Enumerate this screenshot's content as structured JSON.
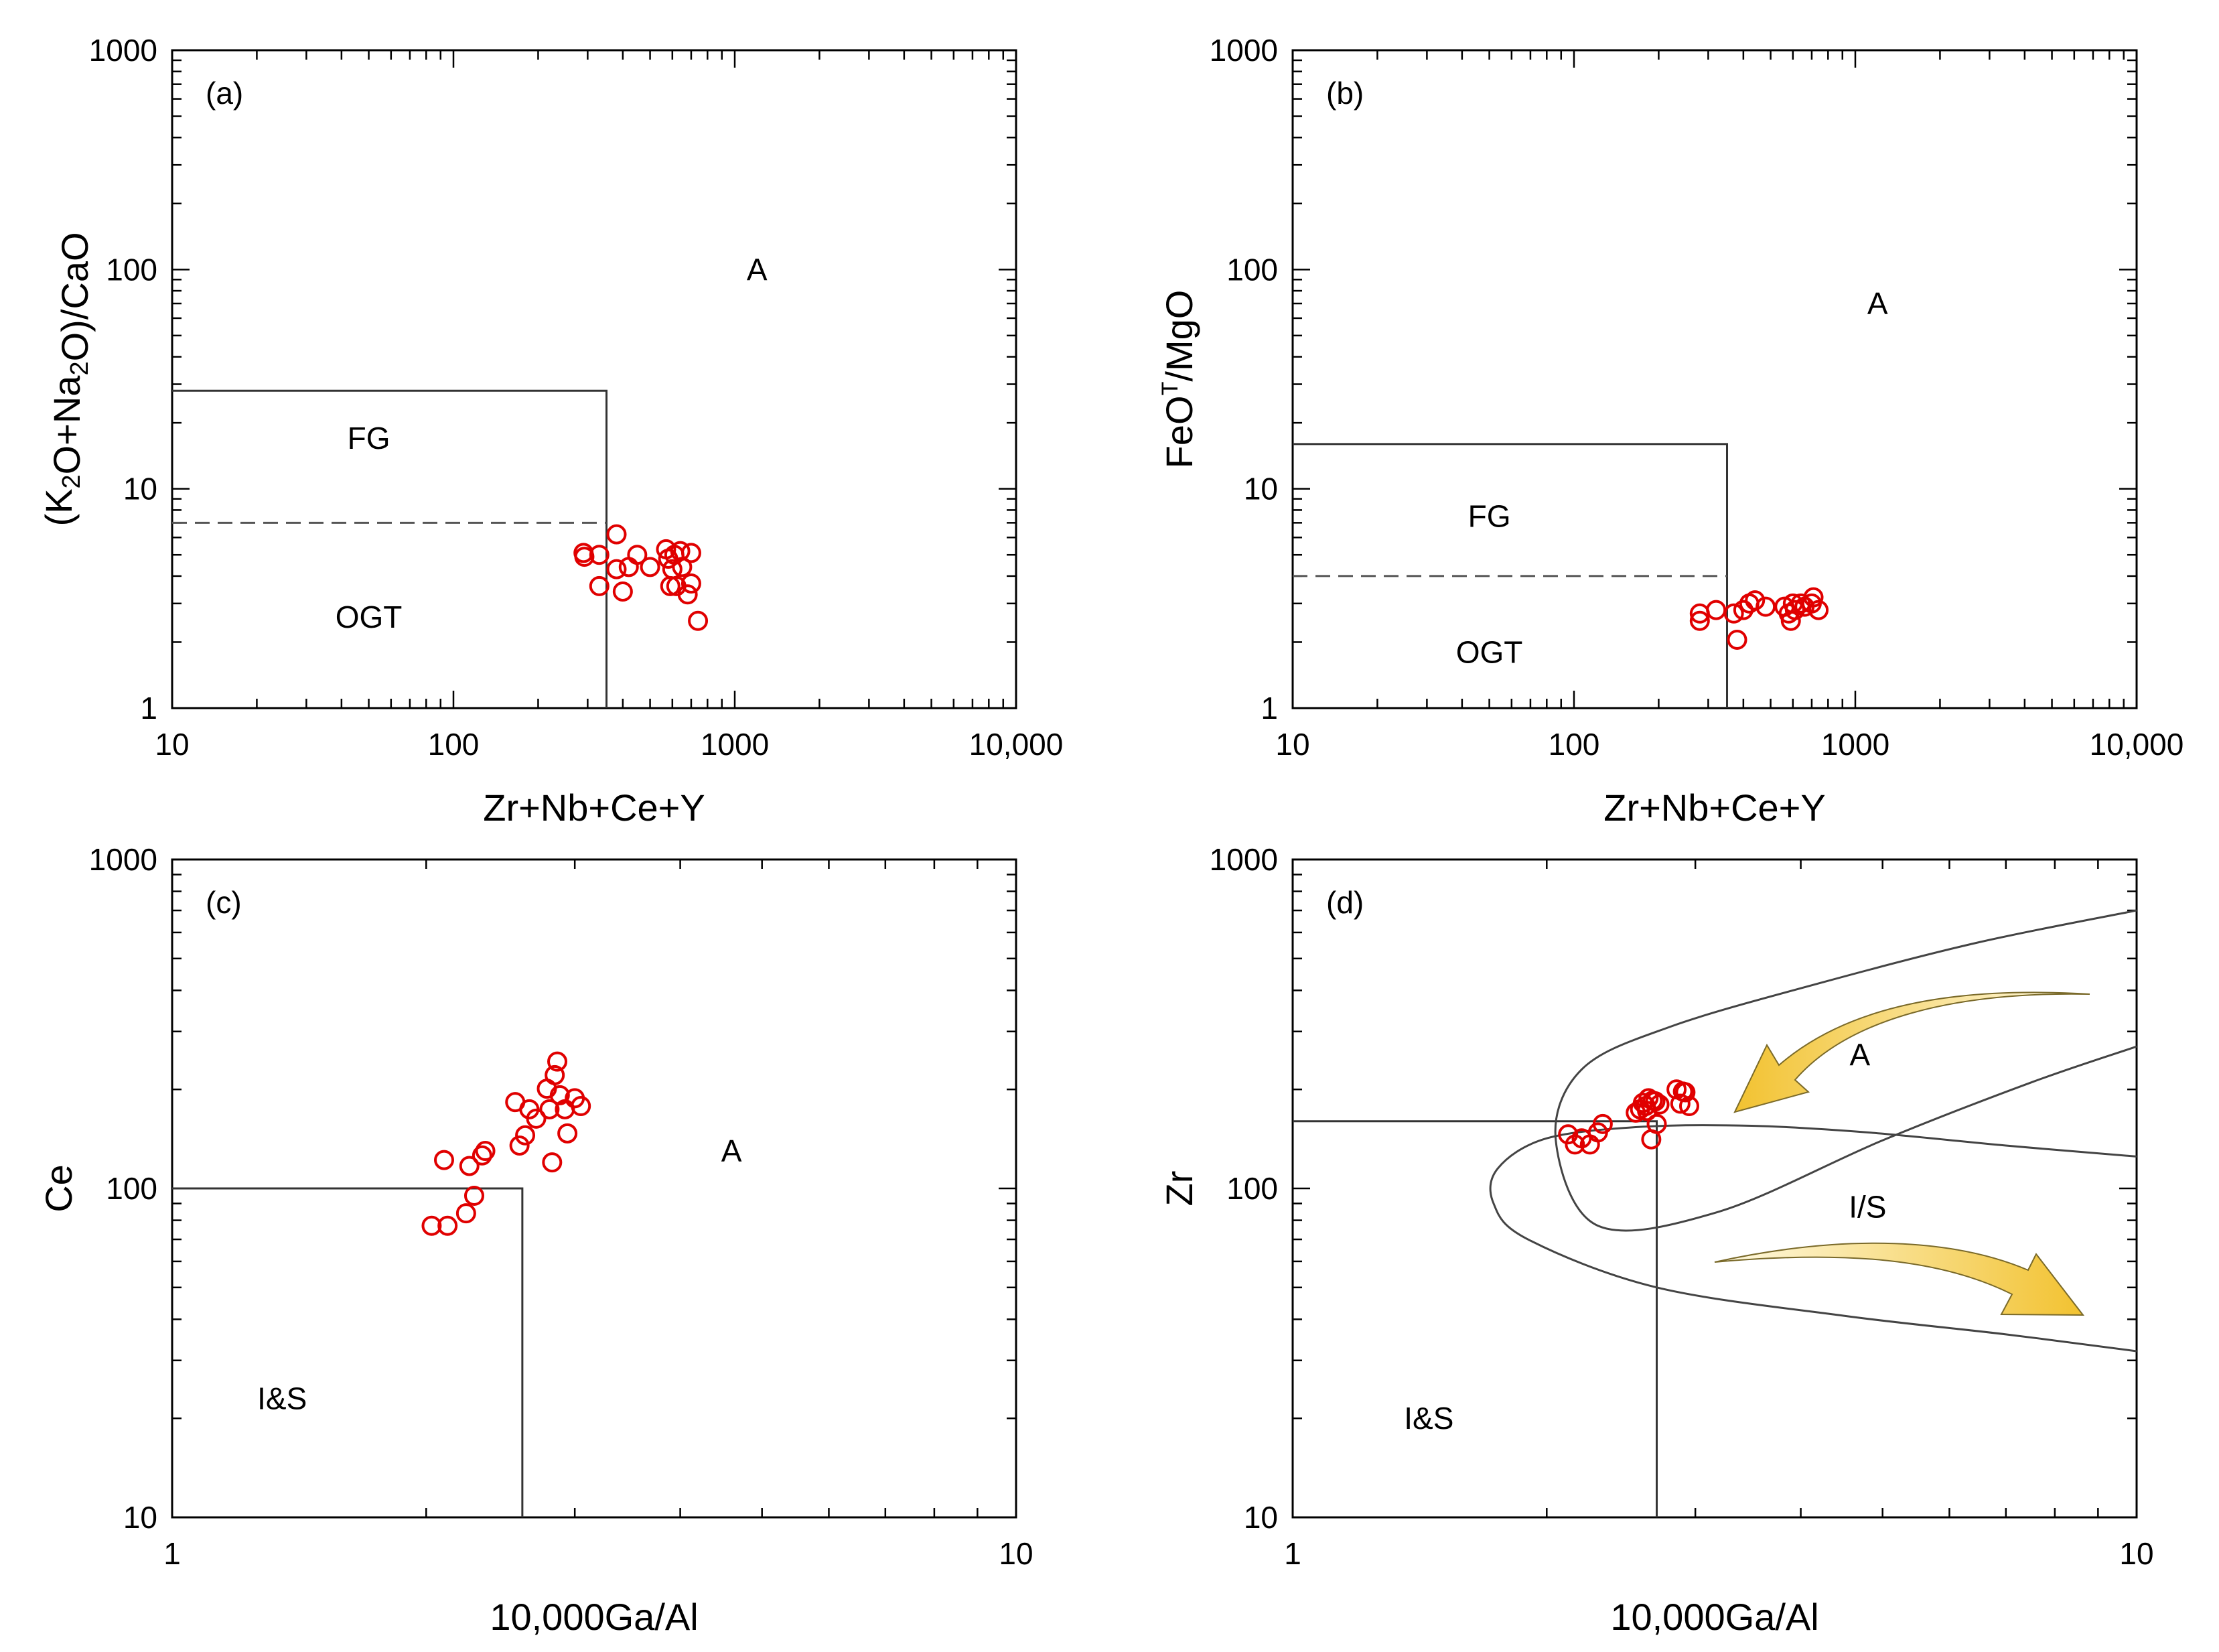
{
  "chart_data": [
    {
      "type": "scatter",
      "panel_label": "(a)",
      "xlabel": "Zr+Nb+Ce+Y",
      "ylabel_parts": [
        "(K",
        "2",
        "O+Na",
        "2",
        "O)/CaO"
      ],
      "xscale": "log",
      "yscale": "log",
      "xlim": [
        10,
        10000
      ],
      "ylim": [
        1,
        1000
      ],
      "x_ticks": [
        "10",
        "100",
        "1000",
        "10,000"
      ],
      "y_ticks": [
        "1",
        "10",
        "100",
        "1000"
      ],
      "field_labels": [
        {
          "text": "A",
          "x": 1200,
          "y": 100
        },
        {
          "text": "FG",
          "x": 50,
          "y": 17
        },
        {
          "text": "OGT",
          "x": 50,
          "y": 2.6
        }
      ],
      "boundary_box": {
        "x_max": 350,
        "y_max": 28
      },
      "dashed_line": {
        "y": 7,
        "x_max": 350
      },
      "series": [
        {
          "name": "",
          "color": "#e00000",
          "points": [
            [
              290,
              5.1
            ],
            [
              292,
              4.9
            ],
            [
              330,
              5.0
            ],
            [
              330,
              3.6
            ],
            [
              380,
              6.2
            ],
            [
              380,
              4.3
            ],
            [
              400,
              3.4
            ],
            [
              420,
              4.4
            ],
            [
              450,
              5.0
            ],
            [
              500,
              4.4
            ],
            [
              570,
              5.3
            ],
            [
              580,
              4.8
            ],
            [
              590,
              3.6
            ],
            [
              600,
              4.3
            ],
            [
              610,
              5.0
            ],
            [
              620,
              3.6
            ],
            [
              640,
              5.2
            ],
            [
              650,
              4.4
            ],
            [
              680,
              3.3
            ],
            [
              700,
              3.7
            ],
            [
              700,
              5.1
            ],
            [
              740,
              2.5
            ]
          ]
        }
      ]
    },
    {
      "type": "scatter",
      "panel_label": "(b)",
      "xlabel": "Zr+Nb+Ce+Y",
      "ylabel_parts": [
        "FeO",
        "T",
        "/MgO"
      ],
      "xscale": "log",
      "yscale": "log",
      "xlim": [
        10,
        10000
      ],
      "ylim": [
        1,
        1000
      ],
      "x_ticks": [
        "10",
        "100",
        "1000",
        "10,000"
      ],
      "y_ticks": [
        "1",
        "10",
        "100",
        "1000"
      ],
      "field_labels": [
        {
          "text": "A",
          "x": 1200,
          "y": 70
        },
        {
          "text": "FG",
          "x": 50,
          "y": 7.5
        },
        {
          "text": "OGT",
          "x": 50,
          "y": 1.8
        }
      ],
      "boundary_box": {
        "x_max": 350,
        "y_max": 16
      },
      "dashed_line": {
        "y": 4,
        "x_max": 350
      },
      "series": [
        {
          "name": "",
          "color": "#e00000",
          "points": [
            [
              280,
              2.7
            ],
            [
              280,
              2.5
            ],
            [
              320,
              2.8
            ],
            [
              370,
              2.7
            ],
            [
              380,
              2.05
            ],
            [
              400,
              2.8
            ],
            [
              420,
              3.0
            ],
            [
              440,
              3.1
            ],
            [
              480,
              2.9
            ],
            [
              560,
              2.9
            ],
            [
              580,
              2.7
            ],
            [
              590,
              2.5
            ],
            [
              600,
              3.0
            ],
            [
              610,
              2.8
            ],
            [
              640,
              3.0
            ],
            [
              660,
              2.9
            ],
            [
              700,
              3.0
            ],
            [
              710,
              3.2
            ],
            [
              740,
              2.8
            ]
          ]
        }
      ]
    },
    {
      "type": "scatter",
      "panel_label": "(c)",
      "xlabel": "10,000Ga/Al",
      "ylabel": "Ce",
      "xscale": "log",
      "yscale": "log",
      "xlim": [
        1,
        10
      ],
      "ylim": [
        10,
        1000
      ],
      "x_ticks": [
        "1",
        "10"
      ],
      "y_ticks": [
        "10",
        "100",
        "1000"
      ],
      "field_labels": [
        {
          "text": "A",
          "x": 4.6,
          "y": 130
        },
        {
          "text": "I&S",
          "x": 1.35,
          "y": 23
        }
      ],
      "boundary_box": {
        "x_max": 2.6,
        "y_max": 100
      },
      "series": [
        {
          "name": "",
          "color": "#e00000",
          "points": [
            [
              2.03,
              77
            ],
            [
              2.12,
              77
            ],
            [
              2.1,
              122
            ],
            [
              2.23,
              84
            ],
            [
              2.25,
              117
            ],
            [
              2.28,
              95
            ],
            [
              2.33,
              126
            ],
            [
              2.35,
              130
            ],
            [
              2.55,
              183
            ],
            [
              2.58,
              135
            ],
            [
              2.62,
              145
            ],
            [
              2.65,
              174
            ],
            [
              2.7,
              163
            ],
            [
              2.78,
              201
            ],
            [
              2.8,
              174
            ],
            [
              2.82,
              120
            ],
            [
              2.84,
              221
            ],
            [
              2.86,
              243
            ],
            [
              2.88,
              192
            ],
            [
              2.92,
              174
            ],
            [
              2.94,
              147
            ],
            [
              3.0,
              188
            ],
            [
              3.05,
              178
            ]
          ]
        }
      ]
    },
    {
      "type": "scatter",
      "panel_label": "(d)",
      "xlabel": "10,000Ga/Al",
      "ylabel": "Zr",
      "xscale": "log",
      "yscale": "log",
      "xlim": [
        1,
        10
      ],
      "ylim": [
        10,
        1000
      ],
      "x_ticks": [
        "1",
        "10"
      ],
      "y_ticks": [
        "10",
        "100",
        "1000"
      ],
      "field_labels": [
        {
          "text": "A",
          "x": 4.7,
          "y": 255
        },
        {
          "text": "I/S",
          "x": 4.8,
          "y": 88
        },
        {
          "text": "I&S",
          "x": 1.45,
          "y": 20
        }
      ],
      "boundary_box": {
        "x_max": 2.7,
        "y_max": 160
      },
      "a_field_curve": [
        [
          10,
          700
        ],
        [
          6.5,
          560
        ],
        [
          4.2,
          420
        ],
        [
          2.8,
          310
        ],
        [
          2.2,
          230
        ],
        [
          2.05,
          140
        ],
        [
          2.3,
          77
        ],
        [
          3.2,
          85
        ],
        [
          5.0,
          140
        ],
        [
          7.5,
          210
        ],
        [
          10,
          270
        ]
      ],
      "is_field_curve": [
        [
          10,
          125
        ],
        [
          7,
          135
        ],
        [
          4.8,
          148
        ],
        [
          3.5,
          155
        ],
        [
          2.6,
          154
        ],
        [
          2.0,
          142
        ],
        [
          1.75,
          115
        ],
        [
          1.73,
          90
        ],
        [
          1.9,
          70
        ],
        [
          2.7,
          50
        ],
        [
          4.5,
          41
        ],
        [
          7,
          36
        ],
        [
          10,
          32
        ]
      ],
      "series": [
        {
          "name": "",
          "color": "#e00000",
          "points": [
            [
              2.12,
              146
            ],
            [
              2.16,
              136
            ],
            [
              2.2,
              142
            ],
            [
              2.25,
              136
            ],
            [
              2.3,
              148
            ],
            [
              2.33,
              157
            ],
            [
              2.55,
              170
            ],
            [
              2.58,
              174
            ],
            [
              2.6,
              182
            ],
            [
              2.62,
              178
            ],
            [
              2.63,
              172
            ],
            [
              2.64,
              188
            ],
            [
              2.66,
              141
            ],
            [
              2.67,
              185
            ],
            [
              2.69,
              184
            ],
            [
              2.7,
              157
            ],
            [
              2.72,
              180
            ],
            [
              2.85,
              200
            ],
            [
              2.88,
              181
            ],
            [
              2.9,
              197
            ],
            [
              2.92,
              196
            ],
            [
              2.95,
              178
            ]
          ]
        }
      ]
    }
  ]
}
